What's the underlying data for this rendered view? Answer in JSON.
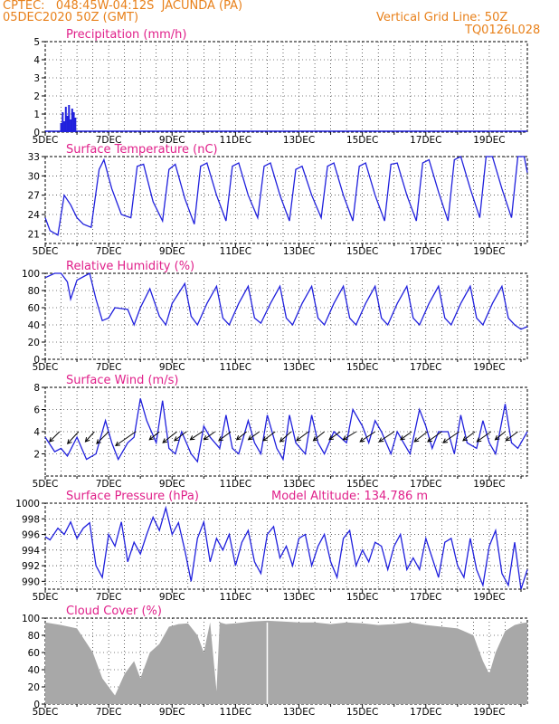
{
  "header": {
    "line1": "CPTEC:   048:45W-04:12S  JACUNDA (PA)",
    "line2": "05DEC2020 50Z (GMT)",
    "right1": "Vertical Grid Line: 50Z",
    "right2": "TQ0126L028"
  },
  "colors": {
    "header": "#e8801a",
    "title": "#e0208a",
    "line": "#2020dd",
    "cloud": "#a8a8a8",
    "wind": "#000000"
  },
  "chart_data": [
    {
      "type": "bar",
      "title": "Precipitation (mm/h)",
      "x_ticks": [
        "5DEC",
        "7DEC",
        "9DEC",
        "11DEC",
        "13DEC",
        "15DEC",
        "17DEC",
        "19DEC"
      ],
      "ylim": [
        0,
        5
      ],
      "y_ticks": [
        "0",
        "1",
        "2",
        "3",
        "4",
        "5"
      ],
      "x": [
        0.5,
        0.55,
        0.6,
        0.65,
        0.7,
        0.75,
        0.8,
        0.85,
        0.9,
        0.95
      ],
      "values": [
        0.5,
        1.1,
        0.6,
        1.4,
        0.9,
        1.5,
        0.7,
        1.3,
        1.1,
        0.8
      ]
    },
    {
      "type": "line",
      "title": "Surface Temperature (nC)",
      "x_ticks": [
        "5DEC",
        "7DEC",
        "9DEC",
        "11DEC",
        "13DEC",
        "15DEC",
        "17DEC",
        "19DEC"
      ],
      "ylim": [
        19.5,
        33
      ],
      "y_ticks": [
        "21",
        "24",
        "27",
        "30",
        "33"
      ],
      "x": [
        0,
        0.15,
        0.4,
        0.6,
        0.8,
        1.0,
        1.2,
        1.45,
        1.7,
        1.85,
        2.1,
        2.4,
        2.7,
        2.9,
        3.1,
        3.4,
        3.7,
        3.9,
        4.1,
        4.4,
        4.7,
        4.9,
        5.1,
        5.4,
        5.7,
        5.9,
        6.1,
        6.4,
        6.7,
        6.9,
        7.1,
        7.4,
        7.7,
        7.9,
        8.1,
        8.4,
        8.7,
        8.9,
        9.1,
        9.4,
        9.7,
        9.9,
        10.1,
        10.4,
        10.7,
        10.9,
        11.1,
        11.4,
        11.7,
        11.9,
        12.1,
        12.4,
        12.7,
        12.9,
        13.1,
        13.4,
        13.7,
        13.9,
        14.1,
        14.4,
        14.7,
        14.9,
        15.1,
        15.2
      ],
      "values": [
        23.5,
        21.5,
        20.8,
        27,
        25.5,
        23.5,
        22.5,
        22,
        31,
        32.5,
        28,
        24,
        23.5,
        31.5,
        31.8,
        26,
        23,
        31,
        31.8,
        26.5,
        22.5,
        31.5,
        32,
        27,
        23,
        31.5,
        32,
        27,
        23.5,
        31.5,
        32,
        27,
        23,
        31,
        31.5,
        27,
        23.5,
        31.5,
        32,
        27,
        23,
        31.5,
        32,
        27,
        23,
        31.8,
        32,
        27,
        23,
        32,
        32.5,
        27.5,
        23,
        32.5,
        33,
        28,
        23.5,
        33,
        33,
        28,
        23.5,
        33,
        33,
        30.5
      ]
    },
    {
      "type": "line",
      "title": "Relative Humidity (%)",
      "x_ticks": [
        "5DEC",
        "7DEC",
        "9DEC",
        "11DEC",
        "13DEC",
        "15DEC",
        "17DEC",
        "19DEC"
      ],
      "ylim": [
        0,
        100
      ],
      "y_ticks": [
        "0",
        "20",
        "40",
        "60",
        "80",
        "100"
      ],
      "x": [
        0,
        0.3,
        0.5,
        0.7,
        0.8,
        1.0,
        1.4,
        1.6,
        1.8,
        2.0,
        2.2,
        2.6,
        2.8,
        3.0,
        3.3,
        3.6,
        3.8,
        4.0,
        4.4,
        4.6,
        4.8,
        5.1,
        5.4,
        5.6,
        5.8,
        6.1,
        6.4,
        6.6,
        6.8,
        7.1,
        7.4,
        7.6,
        7.8,
        8.1,
        8.4,
        8.6,
        8.8,
        9.1,
        9.4,
        9.6,
        9.8,
        10.1,
        10.4,
        10.6,
        10.8,
        11.1,
        11.4,
        11.6,
        11.8,
        12.1,
        12.4,
        12.6,
        12.8,
        13.1,
        13.4,
        13.6,
        13.8,
        14.1,
        14.4,
        14.6,
        14.8,
        15.0,
        15.2
      ],
      "values": [
        95,
        100,
        100,
        90,
        70,
        92,
        100,
        70,
        45,
        48,
        60,
        58,
        40,
        60,
        82,
        50,
        40,
        65,
        88,
        50,
        40,
        65,
        85,
        48,
        40,
        65,
        85,
        48,
        42,
        65,
        85,
        48,
        40,
        65,
        85,
        48,
        40,
        65,
        85,
        48,
        40,
        65,
        85,
        48,
        40,
        65,
        85,
        48,
        40,
        65,
        85,
        48,
        40,
        65,
        85,
        48,
        40,
        65,
        85,
        48,
        40,
        35,
        38
      ]
    },
    {
      "type": "line",
      "title": "Surface Wind (m/s)",
      "x_ticks": [
        "5DEC",
        "7DEC",
        "9DEC",
        "11DEC",
        "13DEC",
        "15DEC",
        "17DEC",
        "19DEC"
      ],
      "ylim": [
        0,
        8
      ],
      "y_ticks": [
        "2",
        "4",
        "6",
        "8"
      ],
      "x": [
        0,
        0.3,
        0.5,
        0.7,
        1.0,
        1.3,
        1.6,
        1.9,
        2.1,
        2.3,
        2.6,
        2.8,
        3.0,
        3.2,
        3.5,
        3.7,
        3.9,
        4.1,
        4.3,
        4.6,
        4.8,
        5.0,
        5.2,
        5.5,
        5.7,
        5.9,
        6.1,
        6.4,
        6.6,
        6.8,
        7.0,
        7.3,
        7.5,
        7.7,
        7.9,
        8.2,
        8.4,
        8.6,
        8.8,
        9.1,
        9.3,
        9.5,
        9.7,
        10.0,
        10.2,
        10.4,
        10.6,
        10.9,
        11.1,
        11.3,
        11.5,
        11.8,
        12.0,
        12.2,
        12.4,
        12.7,
        12.9,
        13.1,
        13.3,
        13.6,
        13.8,
        14.0,
        14.2,
        14.5,
        14.7,
        14.9,
        15.2
      ],
      "values": [
        3.5,
        2.2,
        2.5,
        1.8,
        3.5,
        1.5,
        2.0,
        5.0,
        3.0,
        1.5,
        3.0,
        3.5,
        7.0,
        5.0,
        3.0,
        6.8,
        2.5,
        2.0,
        4.0,
        2.0,
        1.3,
        4.5,
        3.5,
        2.5,
        5.5,
        2.5,
        2.0,
        5.0,
        3.0,
        2.0,
        5.5,
        2.5,
        1.5,
        5.5,
        3.0,
        2.0,
        5.5,
        3.0,
        2.0,
        4.0,
        3.5,
        3.0,
        6.0,
        4.5,
        3.0,
        5.0,
        4.0,
        2.0,
        4.0,
        3.0,
        2.0,
        6.0,
        4.5,
        2.5,
        4.0,
        4.0,
        2.0,
        5.5,
        3.0,
        2.5,
        5.0,
        3.0,
        2.0,
        6.5,
        3.0,
        2.5,
        4.0
      ],
      "wind_barbs": {
        "x": [
          0.45,
          1.05,
          1.55,
          2.0,
          2.85,
          3.6,
          4.15,
          4.45,
          4.95,
          5.35,
          5.85,
          6.35,
          6.75,
          7.25,
          7.75,
          8.3,
          8.8,
          9.3,
          9.8,
          10.4,
          11.0,
          11.55,
          12.05,
          12.5,
          13.05,
          13.55,
          14.05,
          14.5,
          14.9
        ],
        "u": [
          -1.0,
          -1.1,
          -0.9,
          -1.2,
          -2.0,
          -1.0,
          -1.4,
          -1.2,
          -1.2,
          -1.1,
          -1.2,
          -1.0,
          -1.1,
          -1.2,
          -1.1,
          -1.2,
          -1.1,
          -1.1,
          -1.3,
          -1.5,
          -1.5,
          -1.1,
          -1.3,
          -1.4,
          -1.6,
          -1.2,
          -1.4,
          -1.0,
          -1.2
        ],
        "v": [
          -1.0,
          -1.2,
          -1.0,
          -1.2,
          -1.4,
          -0.8,
          -1.1,
          -0.9,
          -0.8,
          -0.8,
          -0.9,
          -0.8,
          -0.8,
          -0.9,
          -1.0,
          -0.9,
          -0.9,
          -0.8,
          -0.8,
          -1.0,
          -1.0,
          -0.8,
          -1.0,
          -1.0,
          -1.1,
          -0.9,
          -1.0,
          -0.8,
          -0.9
        ]
      }
    },
    {
      "type": "line",
      "title": "Surface Pressure (hPa)",
      "annotation": "Model Altitude: 134.786  m",
      "x_ticks": [
        "5DEC",
        "7DEC",
        "9DEC",
        "11DEC",
        "13DEC",
        "15DEC",
        "17DEC",
        "19DEC"
      ],
      "ylim": [
        989,
        1000
      ],
      "y_ticks": [
        "990",
        "992",
        "994",
        "996",
        "998",
        "1000"
      ],
      "x": [
        0,
        0.15,
        0.4,
        0.6,
        0.8,
        1.0,
        1.2,
        1.4,
        1.6,
        1.8,
        2.0,
        2.2,
        2.4,
        2.6,
        2.8,
        3.0,
        3.2,
        3.4,
        3.6,
        3.8,
        4.0,
        4.2,
        4.4,
        4.6,
        4.8,
        5.0,
        5.2,
        5.4,
        5.6,
        5.8,
        6.0,
        6.2,
        6.4,
        6.6,
        6.8,
        7.0,
        7.2,
        7.4,
        7.6,
        7.8,
        8.0,
        8.2,
        8.4,
        8.6,
        8.8,
        9.0,
        9.2,
        9.4,
        9.6,
        9.8,
        10.0,
        10.2,
        10.4,
        10.6,
        10.8,
        11.0,
        11.2,
        11.4,
        11.6,
        11.8,
        12.0,
        12.2,
        12.4,
        12.6,
        12.8,
        13.0,
        13.2,
        13.4,
        13.6,
        13.8,
        14.0,
        14.2,
        14.4,
        14.6,
        14.8,
        15.0,
        15.2
      ],
      "values": [
        995.7,
        995.3,
        996.8,
        996.0,
        997.6,
        995.5,
        996.8,
        997.5,
        992.0,
        990.5,
        996.0,
        994.5,
        997.6,
        992.5,
        995.0,
        993.5,
        996.0,
        998.2,
        996.5,
        999.4,
        996.0,
        997.5,
        994.0,
        990.0,
        995.5,
        997.6,
        992.5,
        995.5,
        994.0,
        996.0,
        992.0,
        995.0,
        996.5,
        992.5,
        991.0,
        996.0,
        997.0,
        993.0,
        994.5,
        992.0,
        995.5,
        996.0,
        992.0,
        994.5,
        996.0,
        992.5,
        990.5,
        995.5,
        996.5,
        992.0,
        994.0,
        992.5,
        995.0,
        994.5,
        991.5,
        994.5,
        996.0,
        991.5,
        993.0,
        991.5,
        995.5,
        993.0,
        990.5,
        995.0,
        995.5,
        992.0,
        990.5,
        995.5,
        991.5,
        989.5,
        994.5,
        996.5,
        991.0,
        989.5,
        995.0,
        989.0,
        991.5
      ]
    },
    {
      "type": "area",
      "title": "Cloud Cover (%)",
      "x_ticks": [
        "5DEC",
        "7DEC",
        "9DEC",
        "11DEC",
        "13DEC",
        "15DEC",
        "17DEC",
        "19DEC"
      ],
      "ylim": [
        0,
        100
      ],
      "y_ticks": [
        "0",
        "20",
        "40",
        "60",
        "80",
        "100"
      ],
      "x": [
        0,
        0.5,
        1.0,
        1.5,
        1.8,
        2.0,
        2.2,
        2.5,
        2.8,
        3.0,
        3.3,
        3.6,
        3.9,
        4.2,
        4.5,
        4.8,
        5.0,
        5.2,
        5.4,
        5.5,
        5.7,
        6.0,
        6.5,
        7.0,
        7.5,
        8.0,
        8.5,
        9.0,
        9.5,
        10.0,
        10.5,
        11.0,
        11.5,
        12.0,
        12.5,
        13.0,
        13.5,
        13.8,
        14.0,
        14.2,
        14.5,
        14.8,
        15.0,
        15.2
      ],
      "values": [
        95,
        92,
        88,
        60,
        30,
        20,
        10,
        35,
        50,
        30,
        60,
        70,
        90,
        93,
        94,
        80,
        60,
        95,
        15,
        95,
        93,
        94,
        96,
        97,
        96,
        95,
        95,
        93,
        95,
        94,
        92,
        93,
        95,
        92,
        90,
        88,
        80,
        50,
        35,
        60,
        85,
        92,
        94,
        95
      ]
    }
  ]
}
